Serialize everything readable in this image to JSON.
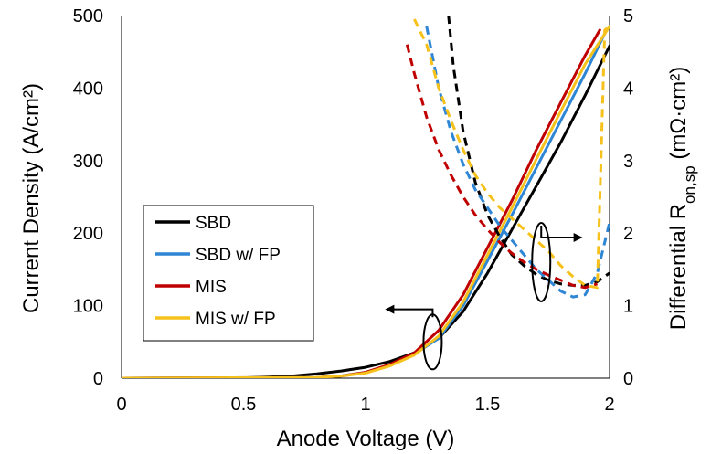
{
  "chart_data": {
    "type": "line",
    "xlabel": "Anode Voltage (V)",
    "ylabel": "Current Density (A/cm²)",
    "y2label": {
      "main": "Differential R",
      "sub": "on,sp",
      "units": " (mΩ·cm²)"
    },
    "xlim": [
      0,
      2
    ],
    "ylim": [
      0,
      500
    ],
    "y2lim": [
      0,
      5
    ],
    "xticks": [
      "0",
      "0.5",
      "1",
      "1.5",
      "2"
    ],
    "yticks": [
      "0",
      "100",
      "200",
      "300",
      "400",
      "500"
    ],
    "y2ticks": [
      "0",
      "1",
      "2",
      "3",
      "4",
      "5"
    ],
    "grid": false,
    "legend_position": "center-left",
    "series": [
      {
        "name": "SBD",
        "color": "#000000",
        "axis": "left",
        "x": [
          0,
          0.5,
          0.6,
          0.7,
          0.8,
          0.9,
          1.0,
          1.1,
          1.2,
          1.3,
          1.4,
          1.5,
          1.6,
          1.7,
          1.8,
          1.9,
          2.0
        ],
        "y": [
          0,
          0.5,
          1.5,
          3,
          6,
          10,
          15,
          23,
          35,
          55,
          92,
          145,
          205,
          265,
          325,
          390,
          458
        ]
      },
      {
        "name": "SBD w/ FP",
        "color": "#2e86d4",
        "axis": "left",
        "x": [
          0,
          0.8,
          0.9,
          1.0,
          1.1,
          1.2,
          1.3,
          1.4,
          1.5,
          1.6,
          1.7,
          1.8,
          1.9,
          1.98
        ],
        "y": [
          0,
          1,
          3,
          8,
          18,
          33,
          55,
          100,
          162,
          225,
          290,
          355,
          420,
          475
        ]
      },
      {
        "name": "MIS",
        "color": "#c00000",
        "axis": "left",
        "x": [
          0,
          0.8,
          0.9,
          1.0,
          1.1,
          1.2,
          1.3,
          1.4,
          1.5,
          1.6,
          1.7,
          1.8,
          1.9,
          1.96
        ],
        "y": [
          0,
          1,
          3,
          8,
          19,
          35,
          66,
          115,
          180,
          245,
          315,
          380,
          445,
          480
        ]
      },
      {
        "name": "MIS w/ FP",
        "color": "#f5c11a",
        "axis": "left",
        "x": [
          0,
          0.8,
          0.9,
          1.0,
          1.1,
          1.2,
          1.3,
          1.4,
          1.5,
          1.6,
          1.7,
          1.8,
          1.9,
          2.0
        ],
        "y": [
          0,
          1,
          3,
          7,
          17,
          32,
          58,
          105,
          170,
          235,
          302,
          368,
          433,
          485
        ]
      },
      {
        "name": "SBD",
        "color": "#000000",
        "axis": "right",
        "dashed": true,
        "x": [
          1.34,
          1.36,
          1.4,
          1.45,
          1.5,
          1.55,
          1.6,
          1.65,
          1.7,
          1.75,
          1.8,
          1.85,
          1.9,
          1.95,
          2.0
        ],
        "y": [
          5.0,
          4.3,
          3.4,
          2.7,
          2.25,
          1.95,
          1.7,
          1.55,
          1.43,
          1.35,
          1.3,
          1.28,
          1.28,
          1.33,
          1.45
        ]
      },
      {
        "name": "SBD w/ FP",
        "color": "#2e86d4",
        "axis": "right",
        "dashed": true,
        "x": [
          1.25,
          1.3,
          1.35,
          1.4,
          1.45,
          1.5,
          1.55,
          1.6,
          1.65,
          1.7,
          1.75,
          1.8,
          1.85,
          1.9,
          1.95,
          2.0
        ],
        "y": [
          4.85,
          4.0,
          3.4,
          2.95,
          2.6,
          2.35,
          2.1,
          1.9,
          1.7,
          1.5,
          1.35,
          1.2,
          1.12,
          1.15,
          1.45,
          2.15
        ]
      },
      {
        "name": "MIS",
        "color": "#c00000",
        "axis": "right",
        "dashed": true,
        "x": [
          1.17,
          1.2,
          1.25,
          1.3,
          1.35,
          1.4,
          1.45,
          1.5,
          1.55,
          1.6,
          1.65,
          1.7,
          1.75,
          1.8,
          1.85,
          1.9,
          1.95
        ],
        "y": [
          4.6,
          4.2,
          3.6,
          3.15,
          2.8,
          2.5,
          2.25,
          2.05,
          1.87,
          1.72,
          1.6,
          1.5,
          1.42,
          1.35,
          1.28,
          1.25,
          1.3
        ]
      },
      {
        "name": "MIS w/ FP",
        "color": "#f5c11a",
        "axis": "right",
        "dashed": true,
        "x": [
          1.2,
          1.25,
          1.3,
          1.35,
          1.4,
          1.45,
          1.5,
          1.55,
          1.6,
          1.65,
          1.7,
          1.75,
          1.8,
          1.85,
          1.9,
          1.95,
          1.98,
          2.0
        ],
        "y": [
          4.95,
          4.6,
          4.0,
          3.55,
          3.15,
          2.8,
          2.55,
          2.35,
          2.2,
          2.05,
          1.9,
          1.75,
          1.55,
          1.4,
          1.28,
          1.25,
          4.8,
          4.85
        ]
      }
    ]
  }
}
